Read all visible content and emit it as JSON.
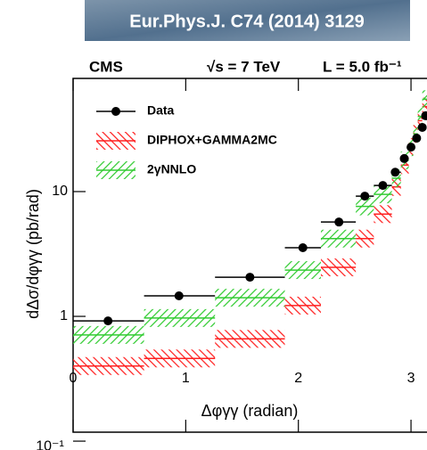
{
  "banner": "Eur.Phys.J. C74 (2014) 3129",
  "header": {
    "experiment": "CMS",
    "energy": "√s = 7 TeV",
    "luminosity": "L = 5.0 fb⁻¹"
  },
  "chart_data": {
    "type": "binned",
    "x_label": "Δφγγ (radian)",
    "y_label": "dΔσ/dφγγ (pb/rad)",
    "log_y": true,
    "xlim": [
      0,
      3.142
    ],
    "ylim": [
      0.118,
      80.7
    ],
    "xticks": [
      0,
      1,
      2,
      3
    ],
    "yticks": [
      {
        "value": 0.1,
        "label": "10⁻¹"
      },
      1,
      10
    ],
    "bins": [
      0,
      0.63,
      1.26,
      1.88,
      2.2,
      2.51,
      2.67,
      2.83,
      2.91,
      2.98,
      3.02,
      3.06,
      3.1,
      3.142
    ],
    "x": [
      0.31,
      0.94,
      1.57,
      2.04,
      2.36,
      2.59,
      2.75,
      2.86,
      2.94,
      3.0,
      3.05,
      3.1,
      3.13
    ],
    "series": [
      {
        "name": "Data",
        "color": "#000000",
        "values": [
          0.92,
          1.46,
          2.06,
          3.55,
          5.7,
          9.2,
          11.2,
          14.3,
          18.4,
          22.7,
          26.8,
          32.7,
          40.5
        ]
      },
      {
        "name": "DIPHOX+GAMMA2MC",
        "color": "#ff2020",
        "values": [
          0.4,
          0.46,
          0.66,
          1.22,
          2.47,
          4.2,
          6.6,
          10.9,
          16.3,
          22.7,
          29,
          37,
          48
        ]
      },
      {
        "name": "2γNNLO",
        "color": "#33cc33",
        "values": [
          0.71,
          0.97,
          1.41,
          2.35,
          4.2,
          7.6,
          9.5,
          12.8,
          17.8,
          22.7,
          29,
          40,
          55
        ]
      }
    ]
  }
}
